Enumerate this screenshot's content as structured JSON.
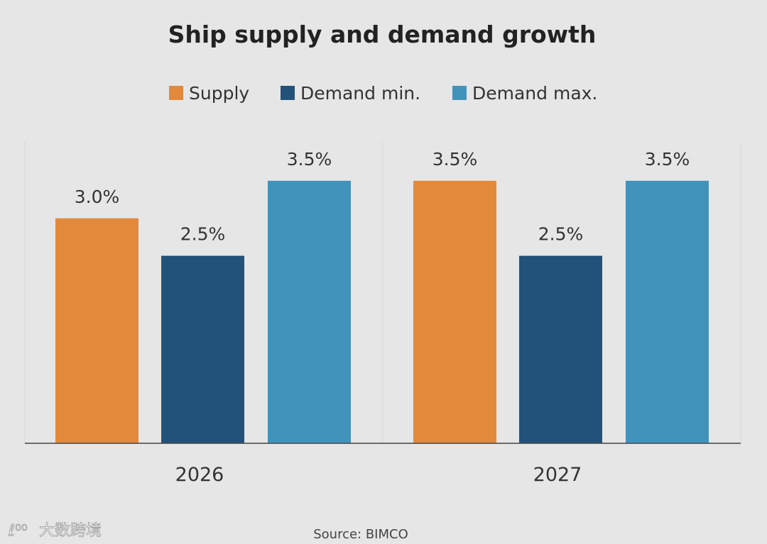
{
  "chart_data": {
    "type": "bar",
    "title": "Ship supply and demand growth",
    "categories": [
      "2026",
      "2027"
    ],
    "series": [
      {
        "name": "Supply",
        "color": "#e3893b",
        "values": [
          3.0,
          3.5
        ],
        "labels": [
          "3.0%",
          "3.5%"
        ]
      },
      {
        "name": "Demand min.",
        "color": "#22527a",
        "values": [
          2.5,
          2.5
        ],
        "labels": [
          "2.5%",
          "2.5%"
        ]
      },
      {
        "name": "Demand max.",
        "color": "#4293bb",
        "values": [
          3.5,
          3.5
        ],
        "labels": [
          "3.5%",
          "3.5%"
        ]
      }
    ],
    "xlabel": "",
    "ylabel": "",
    "ylim": [
      0,
      4
    ],
    "legend": "top-center",
    "grid": false
  },
  "source": "Source: BIMCO",
  "watermark": "大数跨境"
}
